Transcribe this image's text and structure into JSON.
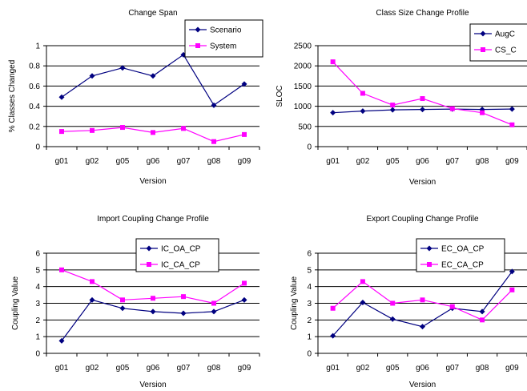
{
  "chart_data": [
    {
      "type": "line",
      "title": "Change Span",
      "xlabel": "Version",
      "ylabel": "% Classes Changed",
      "categories": [
        "g01",
        "g02",
        "g05",
        "g06",
        "g07",
        "g08",
        "g09"
      ],
      "ylim": [
        0,
        1
      ],
      "yticks": [
        "0",
        "0.2",
        "0.4",
        "0.6",
        "0.8",
        "1"
      ],
      "grid": true,
      "legend": "top-right",
      "series": [
        {
          "name": "Scenario",
          "color": "#000080",
          "marker": "diamond",
          "values": [
            0.49,
            0.7,
            0.78,
            0.7,
            0.91,
            0.41,
            0.62
          ]
        },
        {
          "name": "System",
          "color": "#ff00ff",
          "marker": "square",
          "values": [
            0.15,
            0.16,
            0.19,
            0.14,
            0.18,
            0.05,
            0.12
          ]
        }
      ]
    },
    {
      "type": "line",
      "title": "Class Size Change Profile",
      "xlabel": "Version",
      "ylabel": "SLOC",
      "categories": [
        "g01",
        "g02",
        "g05",
        "g06",
        "g07",
        "g08",
        "g09"
      ],
      "ylim": [
        0,
        2500
      ],
      "yticks": [
        "0",
        "500",
        "1000",
        "1500",
        "2000",
        "2500"
      ],
      "grid": true,
      "legend": "top-right",
      "series": [
        {
          "name": "AugC",
          "color": "#000080",
          "marker": "diamond",
          "values": [
            840,
            880,
            910,
            920,
            930,
            920,
            930
          ]
        },
        {
          "name": "CS_C",
          "color": "#ff00ff",
          "marker": "square",
          "values": [
            2100,
            1320,
            1030,
            1190,
            940,
            840,
            540
          ]
        }
      ]
    },
    {
      "type": "line",
      "title": "Import Coupling Change Profile",
      "xlabel": "Version",
      "ylabel": "Coupling Value",
      "categories": [
        "g01",
        "g02",
        "g05",
        "g06",
        "g07",
        "g08",
        "g09"
      ],
      "ylim": [
        0,
        6
      ],
      "yticks": [
        "0",
        "1",
        "2",
        "3",
        "4",
        "5",
        "6"
      ],
      "grid": true,
      "legend": "top-right",
      "series": [
        {
          "name": "IC_OA_CP",
          "color": "#000080",
          "marker": "diamond",
          "values": [
            0.75,
            3.2,
            2.7,
            2.5,
            2.4,
            2.5,
            3.2
          ]
        },
        {
          "name": "IC_CA_CP",
          "color": "#ff00ff",
          "marker": "square",
          "values": [
            5.0,
            4.3,
            3.2,
            3.3,
            3.4,
            3.0,
            4.2
          ]
        }
      ]
    },
    {
      "type": "line",
      "title": "Export Coupling Change Profile",
      "xlabel": "Version",
      "ylabel": "Coupling Value",
      "categories": [
        "g01",
        "g02",
        "g05",
        "g06",
        "g07",
        "g08",
        "g09"
      ],
      "ylim": [
        0,
        6
      ],
      "yticks": [
        "0",
        "1",
        "2",
        "3",
        "4",
        "5",
        "6"
      ],
      "grid": true,
      "legend": "top-right",
      "series": [
        {
          "name": "EC_OA_CP",
          "color": "#000080",
          "marker": "diamond",
          "values": [
            1.05,
            3.05,
            2.05,
            1.6,
            2.7,
            2.5,
            4.9
          ]
        },
        {
          "name": "EC_CA_CP",
          "color": "#ff00ff",
          "marker": "square",
          "values": [
            2.7,
            4.3,
            3.0,
            3.2,
            2.8,
            2.0,
            3.8
          ]
        }
      ]
    }
  ]
}
